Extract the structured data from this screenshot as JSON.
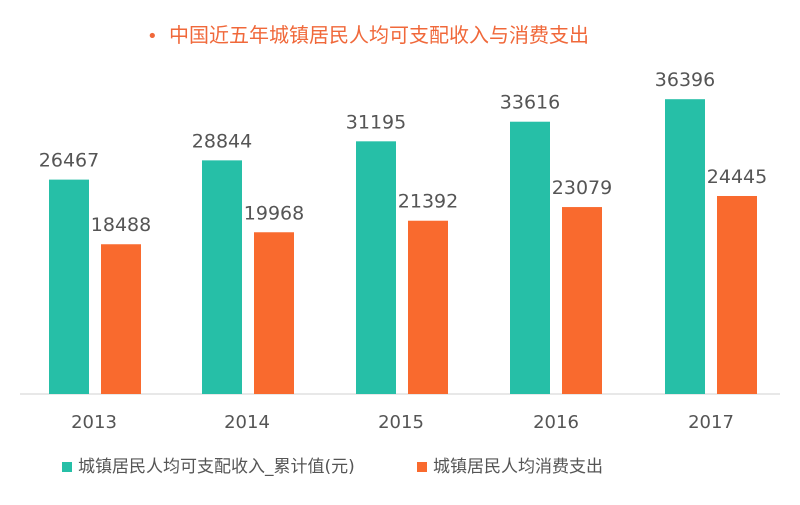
{
  "colors": {
    "income": "#26BFA7",
    "expense": "#F96A2E",
    "title": "#F0683A",
    "text": "#555555",
    "axis": "#D0D0D0"
  },
  "chart_data": {
    "type": "bar",
    "title": "中国近五年城镇居民人均可支配收入与消费支出",
    "title_bullet": "•",
    "categories": [
      "2013",
      "2014",
      "2015",
      "2016",
      "2017"
    ],
    "series": [
      {
        "name": "城镇居民人均可支配收入_累计值(元)",
        "values": [
          26467,
          28844,
          31195,
          33616,
          36396
        ]
      },
      {
        "name": "城镇居民人均消费支出",
        "values": [
          18488,
          19968,
          21392,
          23079,
          24445
        ]
      }
    ],
    "ylim": [
      0,
      40000
    ],
    "grid": false,
    "legend_position": "bottom-left"
  }
}
